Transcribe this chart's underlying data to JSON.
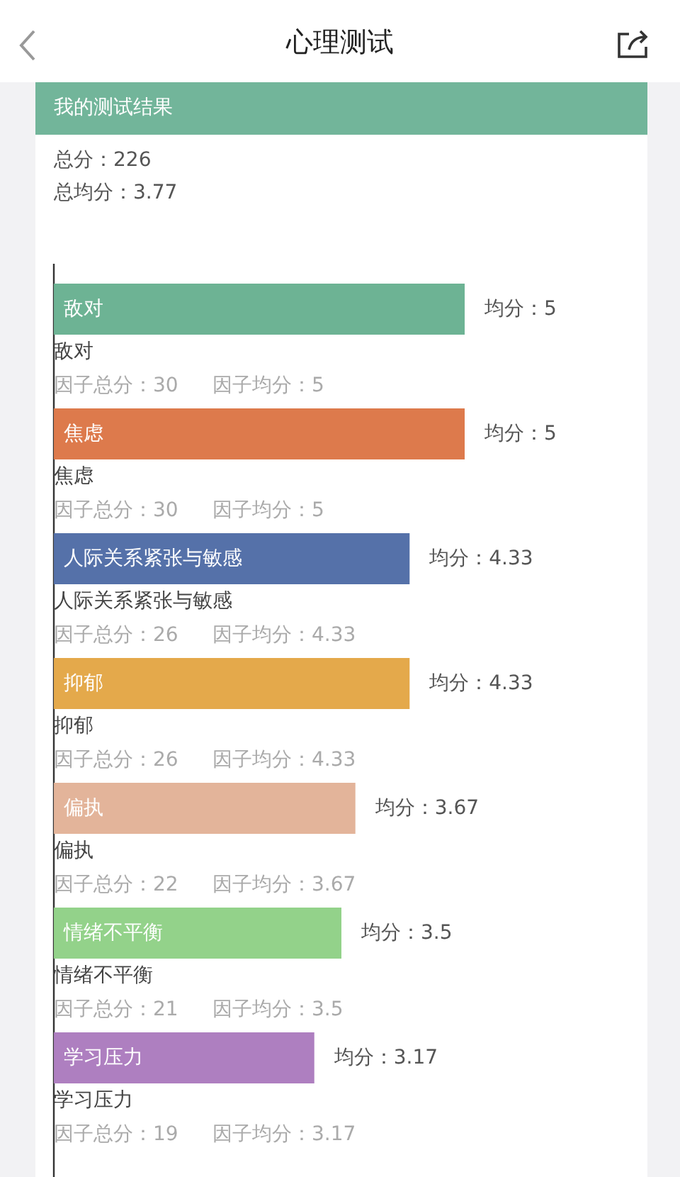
{
  "chart_data": {
    "type": "bar",
    "orientation": "horizontal",
    "title": "心理测试",
    "subtitle": "我的测试结果",
    "categories": [
      "敌对",
      "焦虑",
      "人际关系紧张与敏感",
      "抑郁",
      "偏执",
      "情绪不平衡",
      "学习压力"
    ],
    "values": [
      5,
      5,
      4.33,
      4.33,
      3.67,
      3.5,
      3.17
    ],
    "colors": [
      "#6db394",
      "#dd7a4c",
      "#5571a9",
      "#e4a94b",
      "#e3b49a",
      "#93d28a",
      "#ae7fc0"
    ],
    "value_labels": [
      "均分：5",
      "均分：5",
      "均分：4.33",
      "均分：4.33",
      "均分：3.67",
      "均分：3.5",
      "均分：3.17"
    ],
    "annotations": [
      "总分：226",
      "总均分：3.77",
      "因子总分：30",
      "因子均分：5",
      "因子总分：30",
      "因子均分：5",
      "因子总分：26",
      "因子均分：4.33",
      "因子总分：26",
      "因子均分：4.33",
      "因子总分：22",
      "因子均分：3.67",
      "因子总分：21",
      "因子均分：3.5",
      "因子总分：19",
      "因子均分：3.17"
    ]
  }
}
